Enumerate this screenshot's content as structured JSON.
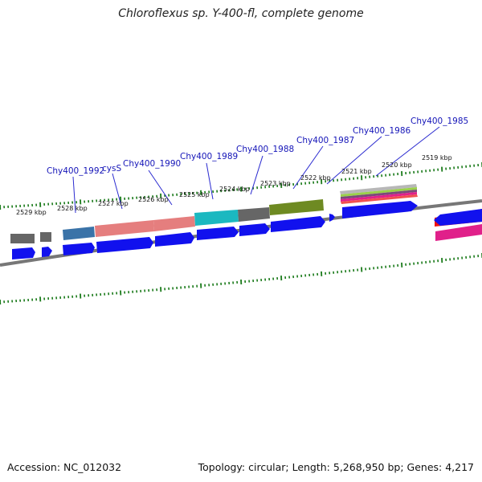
{
  "title": "Chloroflexus sp. Y-400-fl, complete genome",
  "footer": {
    "accession": "Accession: NC_012032",
    "topology": "Topology: circular; Length: 5,268,950 bp; Genes: 4,217"
  },
  "colors": {
    "backbone": "#777777",
    "ruler_tick": "#1a7a1a",
    "label_text": "#1515b8",
    "label_line": "#2b2bd0",
    "cds": "#1111ee",
    "gray_feature": "#666666",
    "steel_feature": "#3a73a8",
    "salmon_feature": "#e57e7e",
    "cyan_feature": "#1bb8c0",
    "olive_feature": "#6e8a22",
    "red_feature": "#ee1111",
    "magenta_feature": "#e0208a"
  },
  "ruler_labels": [
    "2529 kbp",
    "2528 kbp",
    "2527 kbp",
    "2526 kbp",
    "2525 kbp",
    "2524 kbp",
    "2523 kbp",
    "2522 kbp",
    "2521 kbp",
    "2520 kbp",
    "2519 kbp"
  ],
  "gene_labels": [
    "Chy400_1992",
    "cysS",
    "Chy400_1990",
    "Chy400_1989",
    "Chy400_1988",
    "Chy400_1987",
    "Chy400_1986",
    "Chy400_1985"
  ]
}
